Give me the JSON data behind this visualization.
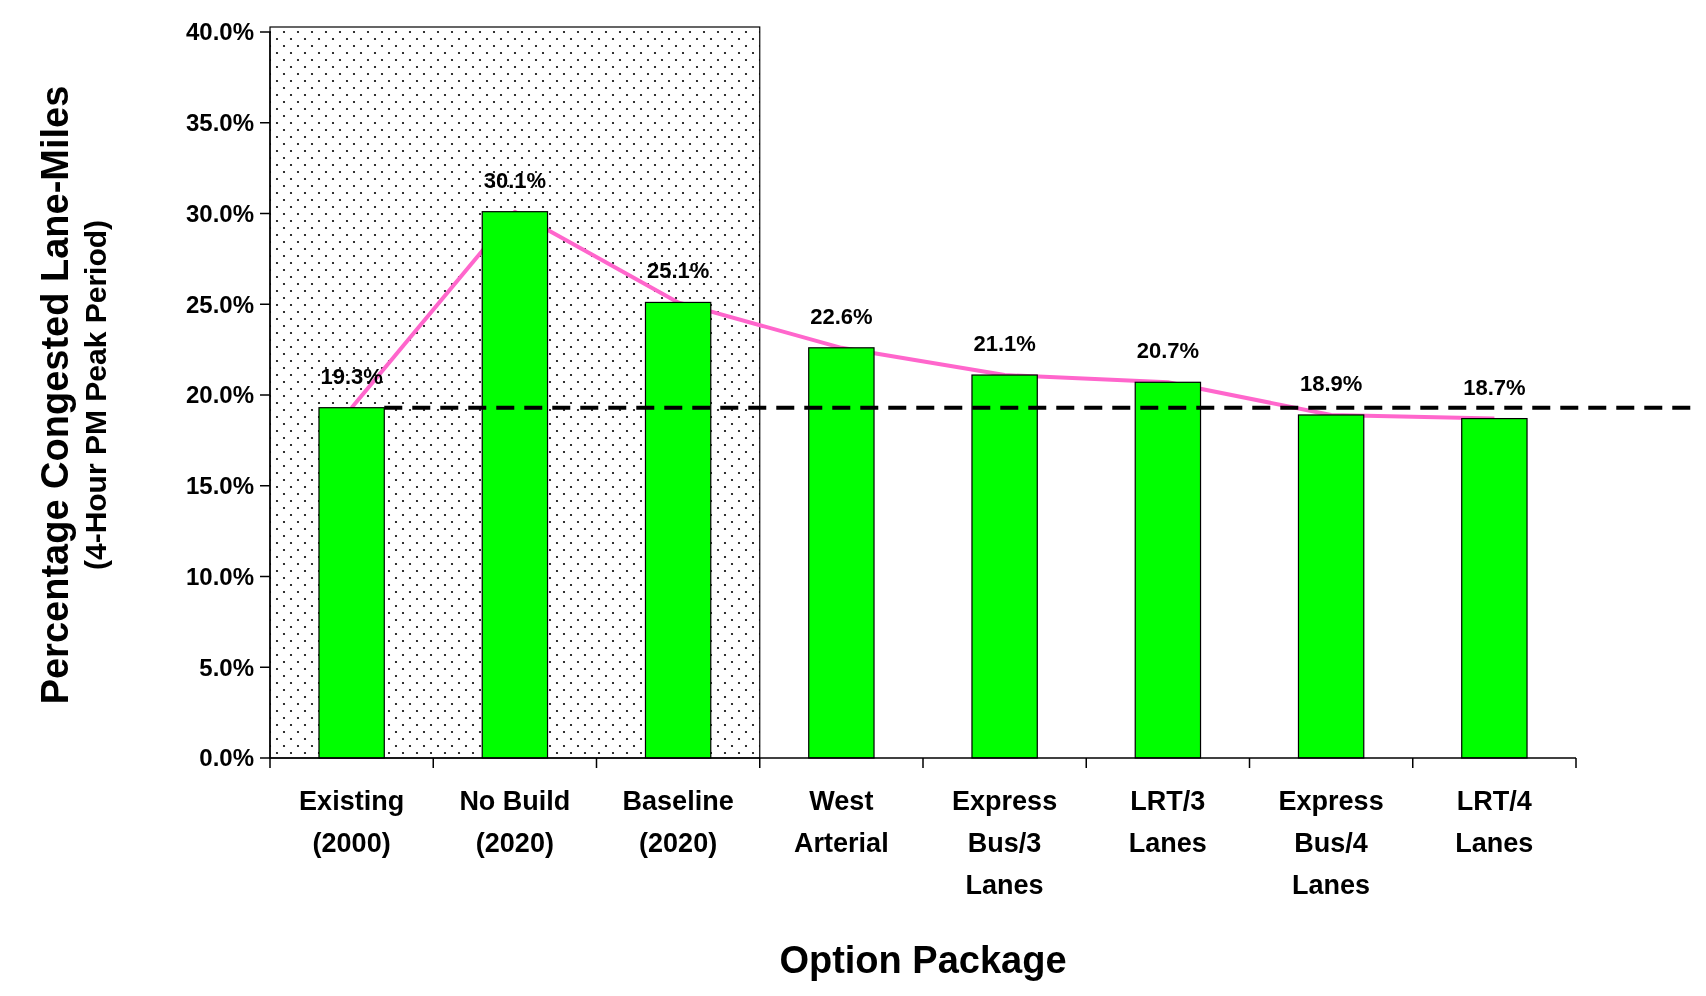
{
  "chart_data": {
    "type": "bar",
    "xlabel": "Option Package",
    "ylabel": "Percentage Congested Lane-Miles\n(4-Hour PM Peak Period)",
    "categories": [
      "Existing\n(2000)",
      "No Build\n(2020)",
      "Baseline\n(2020)",
      "West\nArterial",
      "Express\nBus/3\nLanes",
      "LRT/3\nLanes",
      "Express\nBus/4\nLanes",
      "LRT/4\nLanes"
    ],
    "series": [
      {
        "color": "#00ff00",
        "values": [
          19.3,
          30.1,
          25.1,
          22.6,
          21.1,
          20.7,
          18.9,
          18.7
        ]
      },
      {
        "type": "line",
        "color": "#ff66cc",
        "values": [
          19.3,
          30.1,
          25.1,
          22.6,
          21.1,
          20.7,
          18.9,
          18.7
        ]
      }
    ],
    "value_labels": [
      "19.3%",
      "30.1%",
      "25.1%",
      "22.6%",
      "21.1%",
      "20.7%",
      "18.9%",
      "18.7%"
    ],
    "ylim": [
      0,
      40
    ],
    "yticks": [
      {
        "value": 0,
        "label": "0.0%"
      },
      {
        "value": 5,
        "label": "5.0%"
      },
      {
        "value": 10,
        "label": "10.0%"
      },
      {
        "value": 15,
        "label": "15.0%"
      },
      {
        "value": 20,
        "label": "20.0%"
      },
      {
        "value": 25,
        "label": "25.0%"
      },
      {
        "value": 30,
        "label": "30.0%"
      },
      {
        "value": 35,
        "label": "35.0%"
      },
      {
        "value": 40,
        "label": "40.0%"
      }
    ],
    "ref_lines": [
      {
        "axis": "y",
        "value": 19.3,
        "color": "#000000",
        "line_style": "dashed"
      }
    ],
    "bands": [
      {
        "axis": "x",
        "from": "Existing\n(2000)",
        "to": "Baseline\n(2020)"
      }
    ],
    "grid": false
  }
}
